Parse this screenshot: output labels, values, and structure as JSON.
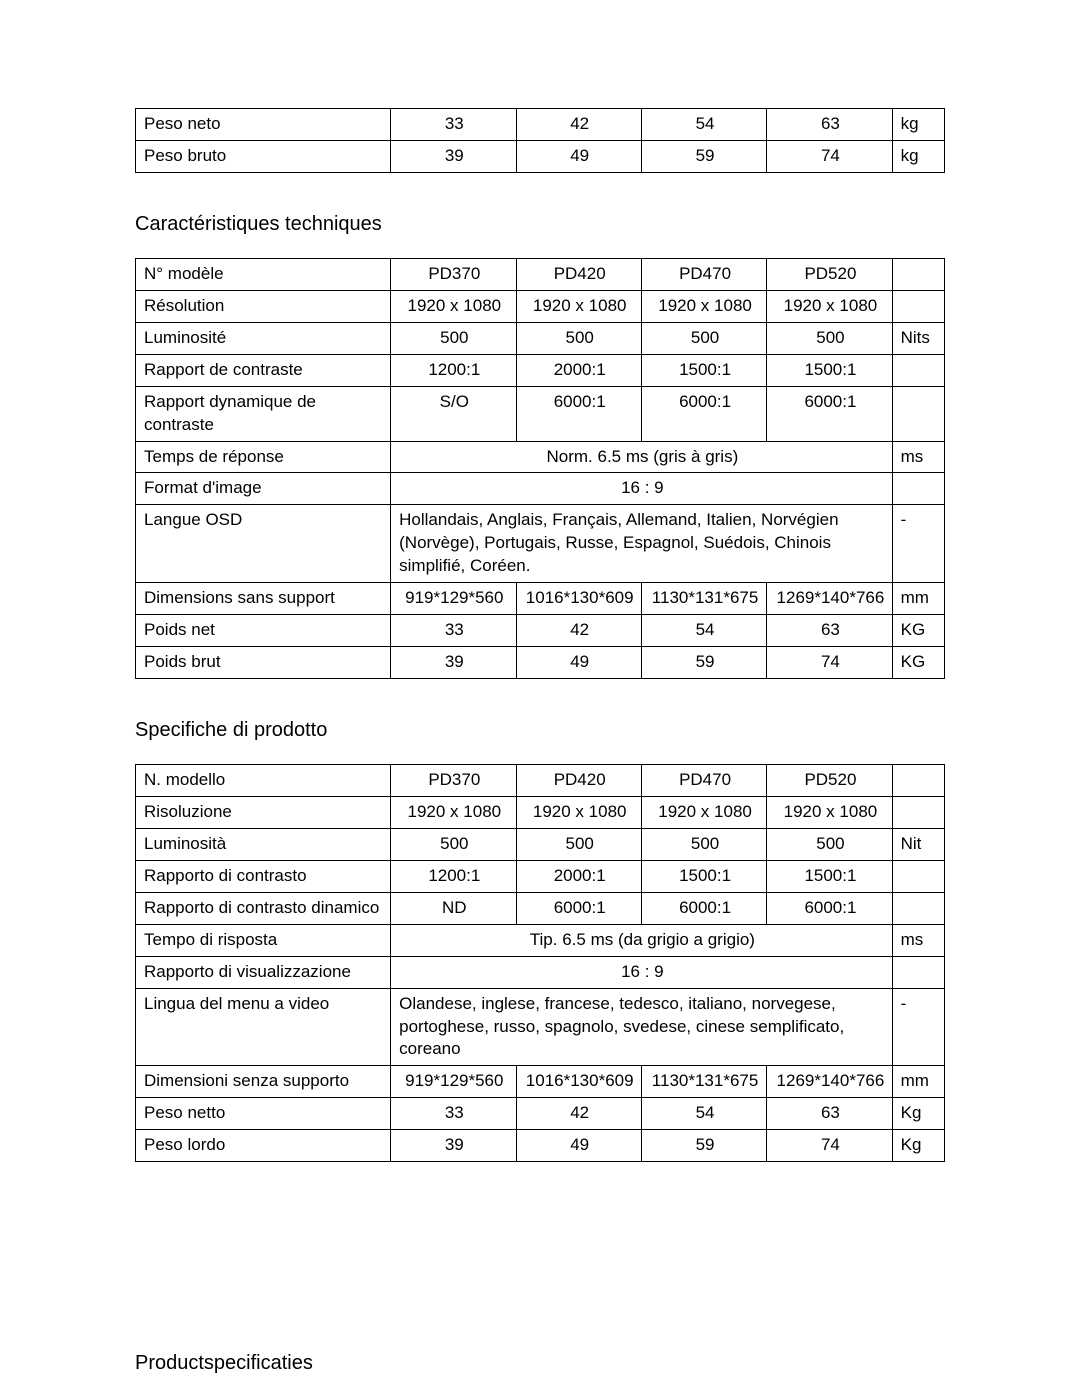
{
  "table_top": {
    "rows": [
      {
        "label": "Peso neto",
        "v1": "33",
        "v2": "42",
        "v3": "54",
        "v4": "63",
        "unit": "kg"
      },
      {
        "label": "Peso bruto",
        "v1": "39",
        "v2": "49",
        "v3": "59",
        "v4": "74",
        "unit": "kg"
      }
    ]
  },
  "section_fr": {
    "title": "Caractéristiques techniques",
    "header": {
      "label": "N° modèle",
      "c1": "PD370",
      "c2": "PD420",
      "c3": "PD470",
      "c4": "PD520",
      "unit": ""
    },
    "rows": {
      "resolution": {
        "label": "Résolution",
        "v1": "1920 x 1080",
        "v2": "1920 x 1080",
        "v3": "1920 x 1080",
        "v4": "1920 x 1080",
        "unit": ""
      },
      "brightness": {
        "label": "Luminosité",
        "v1": "500",
        "v2": "500",
        "v3": "500",
        "v4": "500",
        "unit": "Nits"
      },
      "contrast": {
        "label": "Rapport de contraste",
        "v1": "1200:1",
        "v2": "2000:1",
        "v3": "1500:1",
        "v4": "1500:1",
        "unit": ""
      },
      "dyn_contrast": {
        "label": "Rapport dynamique de contraste",
        "v1": "S/O",
        "v2": "6000:1",
        "v3": "6000:1",
        "v4": "6000:1",
        "unit": ""
      },
      "response": {
        "label": "Temps de réponse",
        "span": "Norm. 6.5 ms (gris à gris)",
        "unit": "ms"
      },
      "aspect": {
        "label": "Format d'image",
        "span": "16 : 9",
        "unit": ""
      },
      "osd": {
        "label": "Langue OSD",
        "span": "Hollandais, Anglais, Français, Allemand, Italien, Norvégien (Norvège), Portugais, Russe, Espagnol, Suédois, Chinois simplifié, Coréen.",
        "unit": "-"
      },
      "dims": {
        "label": "Dimensions sans support",
        "v1": "919*129*560",
        "v2": "1016*130*609",
        "v3": "1130*131*675",
        "v4": "1269*140*766",
        "unit": "mm"
      },
      "net": {
        "label": "Poids net",
        "v1": "33",
        "v2": "42",
        "v3": "54",
        "v4": "63",
        "unit": "KG"
      },
      "gross": {
        "label": "Poids brut",
        "v1": "39",
        "v2": "49",
        "v3": "59",
        "v4": "74",
        "unit": "KG"
      }
    }
  },
  "section_it": {
    "title": "Specifiche di prodotto",
    "header": {
      "label": "N. modello",
      "c1": "PD370",
      "c2": "PD420",
      "c3": "PD470",
      "c4": "PD520",
      "unit": ""
    },
    "rows": {
      "resolution": {
        "label": "Risoluzione",
        "v1": "1920 x 1080",
        "v2": "1920 x 1080",
        "v3": "1920 x 1080",
        "v4": "1920 x 1080",
        "unit": ""
      },
      "brightness": {
        "label": "Luminosità",
        "v1": "500",
        "v2": "500",
        "v3": "500",
        "v4": "500",
        "unit": "Nit"
      },
      "contrast": {
        "label": "Rapporto di contrasto",
        "v1": "1200:1",
        "v2": "2000:1",
        "v3": "1500:1",
        "v4": "1500:1",
        "unit": ""
      },
      "dyn_contrast": {
        "label": "Rapporto di contrasto dinamico",
        "v1": "ND",
        "v2": "6000:1",
        "v3": "6000:1",
        "v4": "6000:1",
        "unit": ""
      },
      "response": {
        "label": "Tempo di risposta",
        "span": "Tip. 6.5 ms (da grigio a grigio)",
        "unit": "ms"
      },
      "aspect": {
        "label": "Rapporto di visualizzazione",
        "span": "16 : 9",
        "unit": ""
      },
      "osd": {
        "label": "Lingua del menu a video",
        "span": "Olandese, inglese, francese, tedesco, italiano, norvegese, portoghese, russo, spagnolo, svedese, cinese semplificato, coreano",
        "unit": "-"
      },
      "dims": {
        "label": "Dimensioni senza supporto",
        "v1": "919*129*560",
        "v2": "1016*130*609",
        "v3": "1130*131*675",
        "v4": "1269*140*766",
        "unit": "mm"
      },
      "net": {
        "label": "Peso netto",
        "v1": "33",
        "v2": "42",
        "v3": "54",
        "v4": "63",
        "unit": "Kg"
      },
      "gross": {
        "label": "Peso lordo",
        "v1": "39",
        "v2": "49",
        "v3": "59",
        "v4": "74",
        "unit": "Kg"
      }
    }
  },
  "section_nl": {
    "title": "Productspecificaties"
  }
}
